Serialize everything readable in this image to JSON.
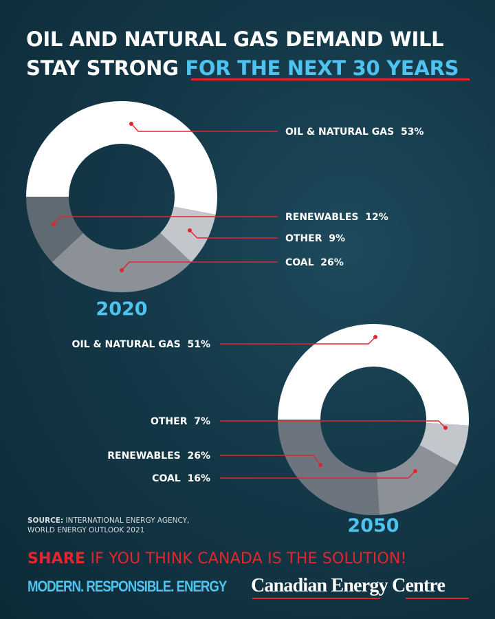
{
  "header": {
    "title_line1": "OIL AND NATURAL GAS DEMAND WILL",
    "title_line2_a": "STAY STRONG ",
    "title_line2_b": "FOR THE NEXT 30 YEARS"
  },
  "colors": {
    "accent_blue": "#4fc3ef",
    "accent_red": "#e3262d",
    "background": "#143848"
  },
  "chart_data": [
    {
      "type": "pie",
      "donut": true,
      "title": "2020",
      "categories": [
        "OIL & NATURAL GAS",
        "OTHER",
        "COAL",
        "RENEWABLES"
      ],
      "values": [
        53,
        9,
        26,
        12
      ],
      "labels": [
        "53%",
        "9%",
        "26%",
        "12%"
      ],
      "colors": [
        "#ffffff",
        "#c3c6cb",
        "#8c9198",
        "#5f6a73"
      ]
    },
    {
      "type": "pie",
      "donut": true,
      "title": "2050",
      "categories": [
        "OIL & NATURAL GAS",
        "OTHER",
        "COAL",
        "RENEWABLES"
      ],
      "values": [
        51,
        7,
        16,
        26
      ],
      "labels": [
        "51%",
        "7%",
        "16%",
        "26%"
      ],
      "colors": [
        "#ffffff",
        "#c3c6cb",
        "#8c9198",
        "#6c757d"
      ]
    }
  ],
  "source": {
    "label": "SOURCE:",
    "line1": " INTERNATIONAL ENERGY AGENCY,",
    "line2": "WORLD ENERGY OUTLOOK 2021"
  },
  "footer": {
    "share_bold": "SHARE",
    "share_rest": " IF YOU THINK CANADA IS THE SOLUTION!",
    "tagline": "MODERN. RESPONSIBLE. ENERGY",
    "logo": "Canadian Energy Centre"
  }
}
